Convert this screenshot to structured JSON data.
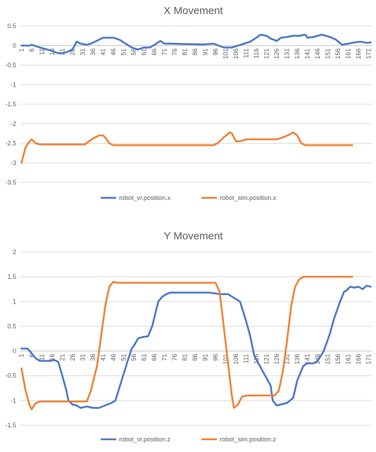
{
  "chart_data": [
    {
      "type": "line",
      "title": "X Movement",
      "xlabel": "",
      "ylabel": "",
      "x_tick_labels": [
        "1",
        "6",
        "11",
        "16",
        "21",
        "26",
        "31",
        "36",
        "41",
        "46",
        "51",
        "56",
        "61",
        "66",
        "71",
        "76",
        "81",
        "86",
        "91",
        "96",
        "101",
        "106",
        "111",
        "116",
        "121",
        "126",
        "131",
        "136",
        "141",
        "146",
        "151",
        "156",
        "161",
        "166",
        "171"
      ],
      "ylim": [
        -3.5,
        0.5
      ],
      "y_ticks": [
        0.5,
        0,
        -0.5,
        -1,
        -1.5,
        -2,
        -2.5,
        -3,
        -3.5
      ],
      "y_tick_labels": [
        "0.5",
        "0",
        "-0.5",
        "-1",
        "-1.5",
        "-2",
        "-2.5",
        "-3",
        "-3.5"
      ],
      "grid": true,
      "legend_position": "bottom",
      "series": [
        {
          "name": "robot_vr.position.x",
          "color": "#4472c4",
          "points": [
            [
              1,
              0
            ],
            [
              5,
              0
            ],
            [
              6,
              0.02
            ],
            [
              10,
              -0.05
            ],
            [
              15,
              -0.12
            ],
            [
              18,
              -0.18
            ],
            [
              20,
              -0.2
            ],
            [
              23,
              -0.17
            ],
            [
              26,
              -0.1
            ],
            [
              28,
              0.1
            ],
            [
              30,
              0.05
            ],
            [
              33,
              0.02
            ],
            [
              35,
              0.05
            ],
            [
              37,
              0.1
            ],
            [
              39,
              0.15
            ],
            [
              41,
              0.2
            ],
            [
              46,
              0.2
            ],
            [
              49,
              0.15
            ],
            [
              52,
              0.05
            ],
            [
              55,
              -0.05
            ],
            [
              58,
              -0.1
            ],
            [
              61,
              -0.05
            ],
            [
              64,
              -0.05
            ],
            [
              67,
              0.05
            ],
            [
              69,
              0.12
            ],
            [
              71,
              0.05
            ],
            [
              74,
              0.05
            ],
            [
              80,
              0.04
            ],
            [
              90,
              0.03
            ],
            [
              95,
              0.05
            ],
            [
              100,
              -0.05
            ],
            [
              104,
              -0.05
            ],
            [
              107,
              0.0
            ],
            [
              110,
              0.05
            ],
            [
              113,
              0.1
            ],
            [
              116,
              0.2
            ],
            [
              118,
              0.28
            ],
            [
              121,
              0.25
            ],
            [
              123,
              0.18
            ],
            [
              126,
              0.12
            ],
            [
              128,
              0.2
            ],
            [
              131,
              0.22
            ],
            [
              134,
              0.25
            ],
            [
              137,
              0.25
            ],
            [
              140,
              0.28
            ],
            [
              141,
              0.2
            ],
            [
              144,
              0.22
            ],
            [
              148,
              0.28
            ],
            [
              152,
              0.22
            ],
            [
              155,
              0.15
            ],
            [
              158,
              0.02
            ],
            [
              161,
              0.05
            ],
            [
              164,
              0.08
            ],
            [
              167,
              0.1
            ],
            [
              170,
              0.07
            ],
            [
              172,
              0.08
            ]
          ]
        },
        {
          "name": "robot_sim.position.x",
          "color": "#ed7d31",
          "points": [
            [
              1,
              -3.0
            ],
            [
              3,
              -2.6
            ],
            [
              5,
              -2.45
            ],
            [
              6,
              -2.4
            ],
            [
              8,
              -2.5
            ],
            [
              10,
              -2.53
            ],
            [
              32,
              -2.53
            ],
            [
              34,
              -2.45
            ],
            [
              36,
              -2.38
            ],
            [
              39,
              -2.3
            ],
            [
              41,
              -2.3
            ],
            [
              42,
              -2.35
            ],
            [
              44,
              -2.5
            ],
            [
              46,
              -2.55
            ],
            [
              95,
              -2.55
            ],
            [
              97,
              -2.5
            ],
            [
              100,
              -2.35
            ],
            [
              103,
              -2.22
            ],
            [
              104,
              -2.25
            ],
            [
              106,
              -2.45
            ],
            [
              108,
              -2.45
            ],
            [
              111,
              -2.4
            ],
            [
              126,
              -2.4
            ],
            [
              129,
              -2.35
            ],
            [
              132,
              -2.28
            ],
            [
              134,
              -2.22
            ],
            [
              136,
              -2.3
            ],
            [
              138,
              -2.5
            ],
            [
              140,
              -2.55
            ],
            [
              163,
              -2.55
            ]
          ]
        }
      ]
    },
    {
      "type": "line",
      "title": "Y Movement",
      "xlabel": "",
      "ylabel": "",
      "x_tick_labels": [
        "1",
        "6",
        "11",
        "16",
        "21",
        "26",
        "31",
        "36",
        "41",
        "46",
        "51",
        "56",
        "61",
        "66",
        "71",
        "76",
        "81",
        "86",
        "91",
        "96",
        "101",
        "106",
        "111",
        "116",
        "121",
        "126",
        "131",
        "136",
        "141",
        "146",
        "151",
        "156",
        "161",
        "166",
        "171"
      ],
      "ylim": [
        -1.5,
        2
      ],
      "y_ticks": [
        2,
        1.5,
        1,
        0.5,
        0,
        -0.5,
        -1,
        -1.5
      ],
      "y_tick_labels": [
        "2",
        "1.5",
        "1",
        "0.5",
        "0",
        "-0.5",
        "-1",
        "-1.5"
      ],
      "grid": true,
      "legend_position": "bottom",
      "series": [
        {
          "name": "robot_vr.position.z",
          "color": "#4472c4",
          "points": [
            [
              1,
              0.05
            ],
            [
              4,
              0.05
            ],
            [
              6,
              -0.05
            ],
            [
              8,
              -0.15
            ],
            [
              10,
              -0.2
            ],
            [
              13,
              -0.2
            ],
            [
              15,
              -0.2
            ],
            [
              17,
              -0.18
            ],
            [
              19,
              -0.22
            ],
            [
              21,
              -0.5
            ],
            [
              23,
              -0.8
            ],
            [
              24,
              -1.0
            ],
            [
              26,
              -1.08
            ],
            [
              28,
              -1.1
            ],
            [
              30,
              -1.15
            ],
            [
              33,
              -1.12
            ],
            [
              36,
              -1.15
            ],
            [
              39,
              -1.15
            ],
            [
              42,
              -1.1
            ],
            [
              45,
              -1.05
            ],
            [
              47,
              -1.0
            ],
            [
              50,
              -0.6
            ],
            [
              53,
              -0.2
            ],
            [
              55,
              0.05
            ],
            [
              56,
              0.1
            ],
            [
              58,
              0.25
            ],
            [
              60,
              0.28
            ],
            [
              63,
              0.3
            ],
            [
              65,
              0.5
            ],
            [
              68,
              1.0
            ],
            [
              70,
              1.1
            ],
            [
              72,
              1.15
            ],
            [
              74,
              1.18
            ],
            [
              80,
              1.18
            ],
            [
              90,
              1.18
            ],
            [
              93,
              1.18
            ],
            [
              98,
              1.15
            ],
            [
              102,
              1.15
            ],
            [
              106,
              1.05
            ],
            [
              108,
              1.0
            ],
            [
              111,
              0.6
            ],
            [
              113,
              0.3
            ],
            [
              115,
              -0.1
            ],
            [
              117,
              -0.25
            ],
            [
              119,
              -0.4
            ],
            [
              121,
              -0.55
            ],
            [
              123,
              -0.7
            ],
            [
              124,
              -1.0
            ],
            [
              126,
              -1.1
            ],
            [
              128,
              -1.08
            ],
            [
              131,
              -1.05
            ],
            [
              134,
              -0.95
            ],
            [
              136,
              -0.6
            ],
            [
              138,
              -0.4
            ],
            [
              139,
              -0.3
            ],
            [
              141,
              -0.25
            ],
            [
              144,
              -0.25
            ],
            [
              146,
              -0.2
            ],
            [
              149,
              0.0
            ],
            [
              152,
              0.35
            ],
            [
              154,
              0.65
            ],
            [
              157,
              1.0
            ],
            [
              159,
              1.2
            ],
            [
              160,
              1.22
            ],
            [
              162,
              1.3
            ],
            [
              164,
              1.28
            ],
            [
              166,
              1.3
            ],
            [
              168,
              1.25
            ],
            [
              170,
              1.32
            ],
            [
              172,
              1.3
            ]
          ]
        },
        {
          "name": "robot_sim.position.z",
          "color": "#ed7d31",
          "points": [
            [
              1,
              -0.35
            ],
            [
              3,
              -0.8
            ],
            [
              5,
              -1.1
            ],
            [
              6,
              -1.18
            ],
            [
              8,
              -1.05
            ],
            [
              10,
              -1.02
            ],
            [
              33,
              -1.02
            ],
            [
              35,
              -0.8
            ],
            [
              38,
              -0.3
            ],
            [
              40,
              0.3
            ],
            [
              42,
              0.9
            ],
            [
              44,
              1.3
            ],
            [
              46,
              1.4
            ],
            [
              48,
              1.38
            ],
            [
              96,
              1.38
            ],
            [
              98,
              1.2
            ],
            [
              100,
              0.5
            ],
            [
              102,
              -0.2
            ],
            [
              104,
              -0.9
            ],
            [
              105,
              -1.15
            ],
            [
              107,
              -1.08
            ],
            [
              109,
              -0.92
            ],
            [
              112,
              -0.9
            ],
            [
              125,
              -0.9
            ],
            [
              127,
              -0.8
            ],
            [
              129,
              -0.4
            ],
            [
              131,
              0.2
            ],
            [
              133,
              0.9
            ],
            [
              135,
              1.3
            ],
            [
              137,
              1.45
            ],
            [
              139,
              1.5
            ],
            [
              163,
              1.5
            ]
          ]
        }
      ]
    }
  ]
}
